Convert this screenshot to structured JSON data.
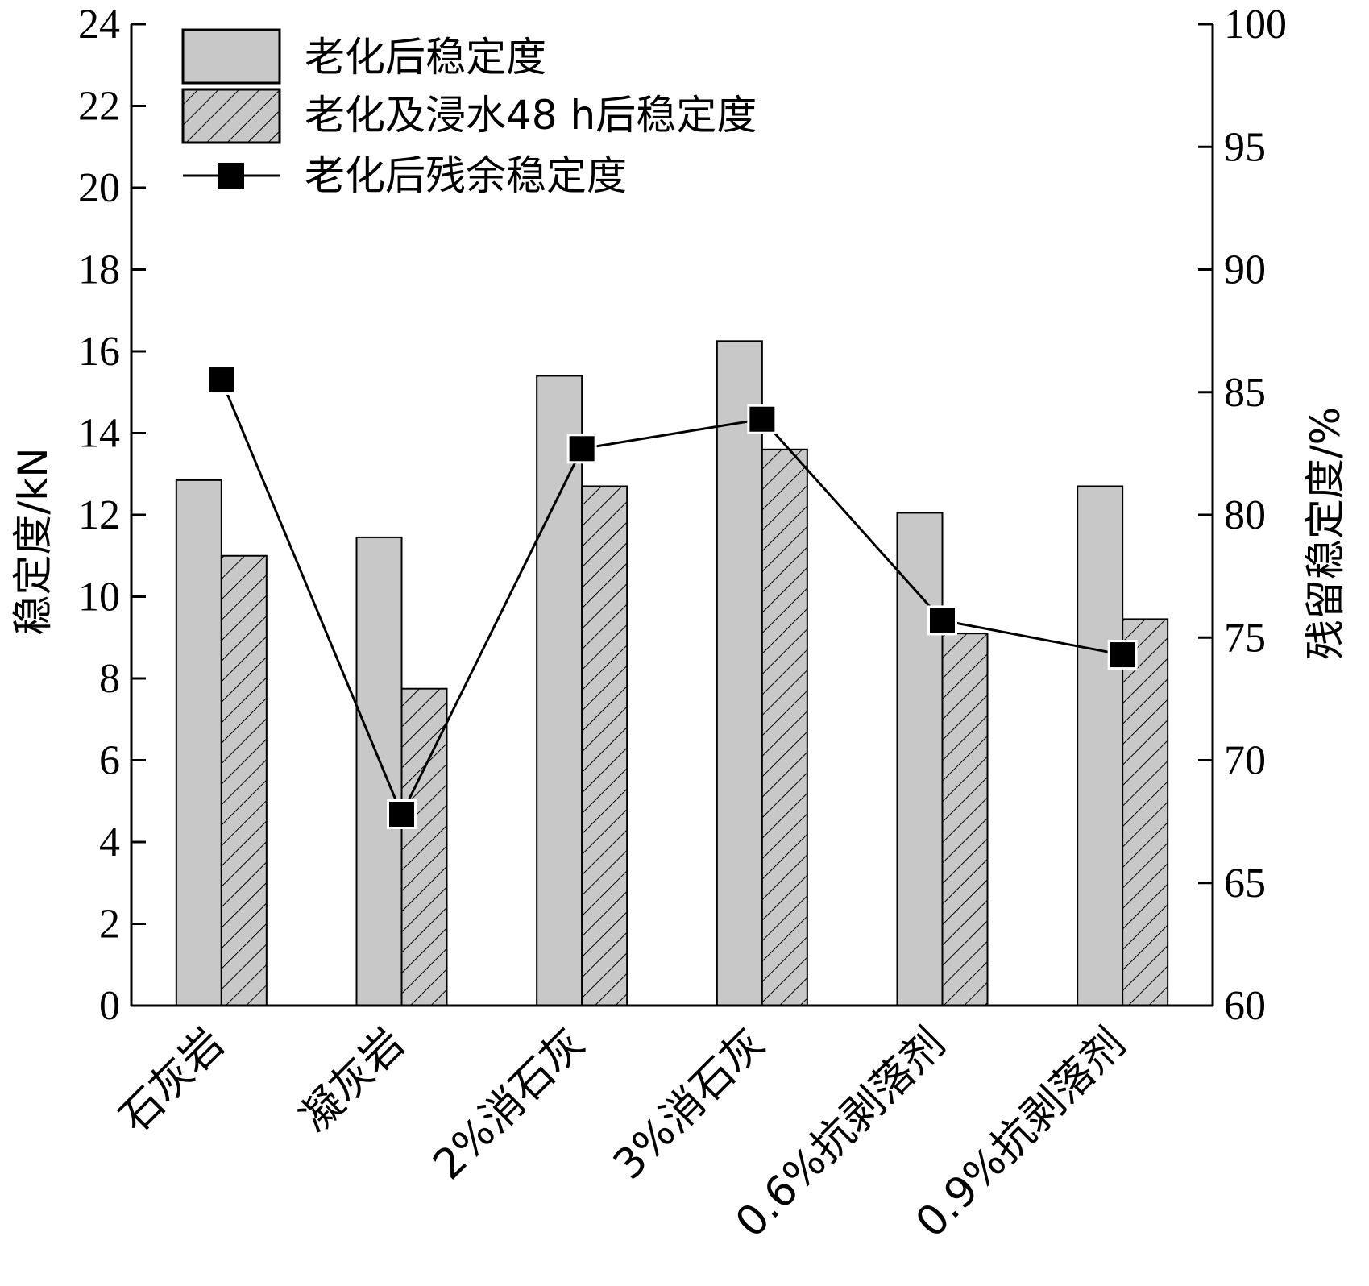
{
  "chart_data": {
    "type": "bar",
    "categories": [
      "石灰岩",
      "凝灰岩",
      "2%消石灰",
      "3%消石灰",
      "0.6%抗剥落剂",
      "0.9%抗剥落剂"
    ],
    "series": [
      {
        "name": "老化后稳定度",
        "type": "bar",
        "axis": "left",
        "fill": "solid",
        "color": "#c8c8c8",
        "values": [
          12.85,
          11.45,
          15.4,
          16.25,
          12.05,
          12.7
        ]
      },
      {
        "name": "老化及浸水48 h后稳定度",
        "type": "bar",
        "axis": "left",
        "fill": "hatched",
        "color": "#c8c8c8",
        "values": [
          11.0,
          7.75,
          12.7,
          13.6,
          9.1,
          9.45
        ]
      },
      {
        "name": "老化后残余稳定度",
        "type": "line",
        "axis": "right",
        "marker": "square",
        "color": "#000000",
        "values": [
          85.5,
          67.8,
          82.7,
          83.9,
          75.7,
          74.3
        ]
      }
    ],
    "ylabel": "稳定度/kN",
    "ylim": [
      0,
      24
    ],
    "yticks": [
      "0",
      "2",
      "4",
      "6",
      "8",
      "10",
      "12",
      "14",
      "16",
      "18",
      "20",
      "22",
      "24"
    ],
    "y2label": "残留稳定度/%",
    "y2lim": [
      60,
      100
    ],
    "y2ticks": [
      "60",
      "65",
      "70",
      "75",
      "80",
      "85",
      "90",
      "95",
      "100"
    ],
    "legend_position": "top-left",
    "grid": false
  }
}
